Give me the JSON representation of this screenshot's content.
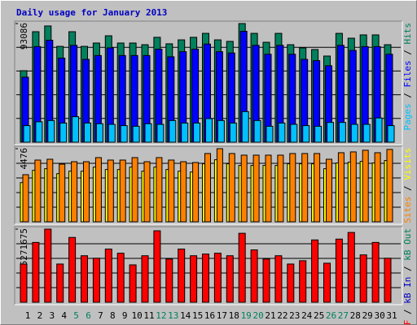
{
  "title": "Daily usage for January 2013",
  "legend_separator": " / ",
  "chart_data": [
    {
      "type": "bar",
      "ylim": [
        0,
        93086
      ],
      "yticks": [
        93086
      ],
      "series": [
        {
          "name": "Pages",
          "color": "#00c0ff",
          "values": [
            13000,
            16000,
            17000,
            15000,
            20000,
            15000,
            14500,
            14000,
            13000,
            12500,
            14500,
            14000,
            17000,
            15000,
            15000,
            18500,
            17000,
            15000,
            24000,
            17000,
            12500,
            15000,
            14000,
            13000,
            12500,
            15500,
            15500,
            14000,
            14000,
            19000,
            13000
          ]
        },
        {
          "name": "Files",
          "color": "#0000ff",
          "values": [
            51000,
            75000,
            80000,
            66000,
            76000,
            65000,
            68000,
            74000,
            68000,
            68000,
            68000,
            73000,
            67000,
            71000,
            73000,
            77000,
            71000,
            70000,
            87000,
            76000,
            69000,
            76000,
            69000,
            65000,
            64000,
            60000,
            76000,
            72000,
            75000,
            75000,
            69000
          ]
        },
        {
          "name": "Hits",
          "color": "#00805c",
          "values": [
            56100,
            86700,
            91200,
            75200,
            86700,
            75200,
            77800,
            83500,
            77800,
            77800,
            76500,
            82300,
            77200,
            80300,
            82300,
            85400,
            80300,
            79100,
            93086,
            85400,
            78400,
            85400,
            76500,
            74000,
            72700,
            67600,
            85400,
            81600,
            84200,
            84200,
            76500
          ]
        }
      ]
    },
    {
      "type": "bar",
      "ylim": [
        0,
        4476
      ],
      "yticks": [
        4476
      ],
      "series": [
        {
          "name": "Sites",
          "color": "#ff8000",
          "values": [
            2885,
            3780,
            3830,
            3530,
            3680,
            3680,
            3930,
            3780,
            3780,
            3930,
            3680,
            3930,
            3780,
            3680,
            3630,
            4180,
            4476,
            4180,
            4080,
            4080,
            4080,
            4080,
            4180,
            4180,
            4180,
            3830,
            4230,
            4280,
            4380,
            4230,
            4430
          ]
        },
        {
          "name": "Visits",
          "color": "#ffff00",
          "values": [
            2400,
            3150,
            3250,
            2950,
            3100,
            3100,
            3350,
            3200,
            3200,
            3350,
            3100,
            3350,
            3200,
            3100,
            3050,
            3550,
            3800,
            3550,
            3450,
            3450,
            3450,
            3450,
            3550,
            3550,
            3550,
            3250,
            3600,
            3650,
            3700,
            3600,
            3750
          ]
        }
      ]
    },
    {
      "type": "bar",
      "ylim": [
        0,
        5271675
      ],
      "yticks": [
        5271675
      ],
      "categories": [
        "1",
        "2",
        "3",
        "4",
        "5",
        "6",
        "7",
        "8",
        "9",
        "10",
        "11",
        "12",
        "13",
        "14",
        "15",
        "16",
        "17",
        "18",
        "19",
        "20",
        "21",
        "22",
        "23",
        "24",
        "25",
        "26",
        "27",
        "28",
        "29",
        "30",
        "31"
      ],
      "category_colors": [
        "#000000",
        "#000000",
        "#000000",
        "#000000",
        "#00805c",
        "#00805c",
        "#000000",
        "#000000",
        "#000000",
        "#000000",
        "#000000",
        "#00805c",
        "#00805c",
        "#000000",
        "#000000",
        "#000000",
        "#000000",
        "#000000",
        "#00805c",
        "#00805c",
        "#000000",
        "#000000",
        "#000000",
        "#000000",
        "#000000",
        "#00805c",
        "#00805c",
        "#000000",
        "#000000",
        "#000000",
        "#000000"
      ],
      "series": [
        {
          "name": "kB F",
          "color": "#ff0000",
          "values": [
            2755600,
            4313200,
            5271675,
            2755600,
            4672600,
            3354700,
            3175000,
            3833900,
            3534400,
            2695700,
            3354700,
            5151800,
            3115100,
            3833900,
            3354700,
            3474500,
            3534400,
            3354700,
            4972100,
            3774000,
            3115100,
            3354700,
            2755600,
            2995200,
            4492900,
            2815500,
            4552800,
            5032000,
            3414600,
            4313200,
            3175000
          ]
        },
        {
          "name": "kB In",
          "color": "#0000c0",
          "values": [
            0,
            0,
            0,
            0,
            0,
            0,
            0,
            0,
            0,
            0,
            0,
            0,
            0,
            0,
            0,
            0,
            0,
            0,
            0,
            0,
            0,
            0,
            0,
            0,
            0,
            0,
            0,
            0,
            0,
            0,
            0
          ]
        },
        {
          "name": "kB Out",
          "color": "#00805c",
          "values": [
            0,
            0,
            0,
            0,
            0,
            0,
            0,
            0,
            0,
            0,
            0,
            0,
            0,
            0,
            0,
            0,
            0,
            0,
            0,
            0,
            0,
            0,
            0,
            0,
            0,
            0,
            0,
            0,
            0,
            0,
            0
          ]
        }
      ]
    }
  ]
}
